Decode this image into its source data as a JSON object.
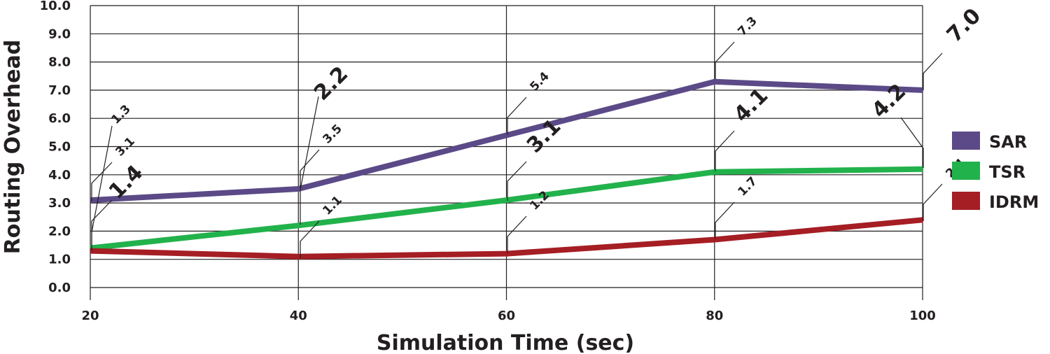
{
  "chart_data": {
    "type": "line",
    "xlabel": "Simulation Time (sec)",
    "ylabel": "Routing  Overhead",
    "x": [
      20,
      40,
      60,
      80,
      100
    ],
    "xlim": [
      20,
      100
    ],
    "ylim": [
      0,
      10
    ],
    "x_ticks": [
      "20",
      "40",
      "60",
      "80",
      "100"
    ],
    "y_ticks": [
      "0.0",
      "1.0",
      "2.0",
      "3.0",
      "4.0",
      "5.0",
      "6.0",
      "7.0",
      "8.0",
      "9.0",
      "10.0"
    ],
    "grid": true,
    "legend_position": "right",
    "series": [
      {
        "name": "SAR",
        "color": "#5b4a87",
        "values": [
          3.1,
          3.5,
          5.4,
          7.3,
          7.0
        ],
        "labels": [
          "3.1",
          "3.5",
          "5.4",
          "7.3",
          "7.0"
        ]
      },
      {
        "name": "TSR",
        "color": "#22b24c",
        "values": [
          1.4,
          2.2,
          3.1,
          4.1,
          4.2
        ],
        "labels": [
          "1.4",
          "2.2",
          "3.1",
          "4.1",
          "4.2"
        ]
      },
      {
        "name": "IDRM",
        "color": "#a51e24",
        "values": [
          1.3,
          1.1,
          1.2,
          1.7,
          2.4
        ],
        "labels": [
          "1.3",
          "1.1",
          "1.2",
          "1.7",
          "2.4"
        ]
      }
    ]
  }
}
